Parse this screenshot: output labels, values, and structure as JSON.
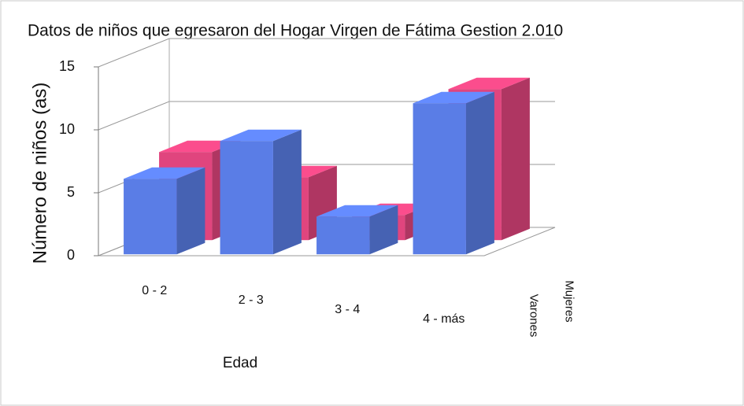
{
  "chart_data": {
    "type": "bar3d",
    "title": "Datos de niños que egresaron  del Hogar Virgen de Fátima Gestion 2.010",
    "x_label": "Edad",
    "y_label": "Número de niños (as)",
    "categories": [
      "0 - 2",
      "2 - 3",
      "3 - 4",
      "4 - más"
    ],
    "series": [
      {
        "name": "Varones",
        "color": "#5a7de6",
        "values": [
          6,
          9,
          3,
          12
        ]
      },
      {
        "name": "Mujeres",
        "color": "#e0457e",
        "values": [
          7,
          5,
          2,
          12
        ]
      }
    ],
    "ylim": [
      0,
      15
    ],
    "yticks": [
      0,
      5,
      10,
      15
    ],
    "grid": true
  }
}
